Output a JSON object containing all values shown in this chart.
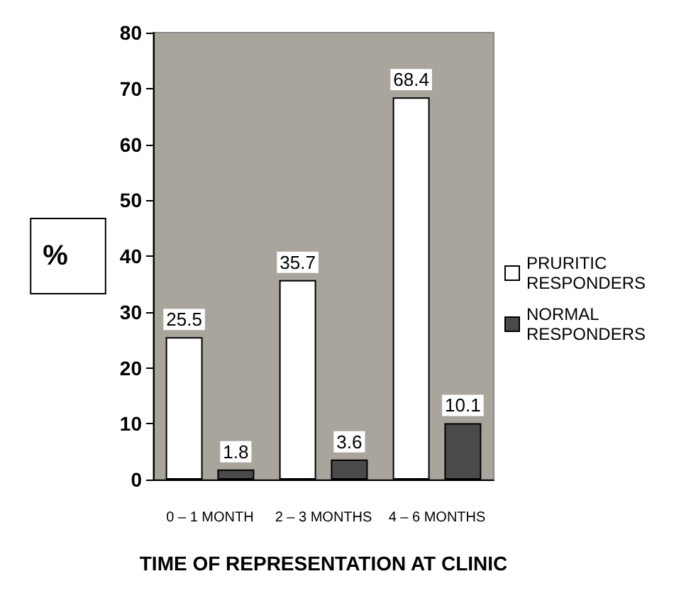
{
  "chart_data": {
    "type": "bar",
    "ylabel": "%",
    "xlabel": "TIME OF REPRESENTATION AT CLINIC",
    "categories": [
      "0 – 1 MONTH",
      "2 – 3 MONTHS",
      "4 – 6 MONTHS"
    ],
    "series": [
      {
        "name": "PRURITIC RESPONDERS",
        "color": "#ffffff",
        "values": [
          25.5,
          35.7,
          68.4
        ]
      },
      {
        "name": "NORMAL RESPONDERS",
        "color": "#4a4a4a",
        "values": [
          1.8,
          3.6,
          10.1
        ]
      }
    ],
    "ylim": [
      0,
      80
    ],
    "yticks": [
      0,
      10,
      20,
      30,
      40,
      50,
      60,
      70,
      80
    ],
    "grid": false,
    "legend": "right",
    "data_labels": true
  }
}
